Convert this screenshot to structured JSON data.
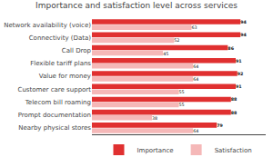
{
  "chart_data": {
    "type": "bar",
    "orientation": "horizontal",
    "title": "Importance and satisfaction level across services",
    "categories": [
      "Network availability (voice)",
      "Connectivity (Data)",
      "Call Drop",
      "Flexible tariff plans",
      "Value for money",
      "Customer care support",
      "Telecom bill roaming",
      "Prompt documentation",
      "Nearby physical stores"
    ],
    "series": [
      {
        "name": "Importance",
        "color": "#e03030",
        "values": [
          94,
          94,
          86,
          91,
          92,
          91,
          88,
          88,
          79
        ]
      },
      {
        "name": "Satisfaction",
        "color": "#f5b8b8",
        "values": [
          63,
          52,
          45,
          64,
          64,
          55,
          55,
          38,
          64
        ]
      }
    ],
    "xlim": [
      0,
      110
    ],
    "data_labels": true,
    "tick_labels": "y",
    "grid": false,
    "legend": "bottom"
  }
}
